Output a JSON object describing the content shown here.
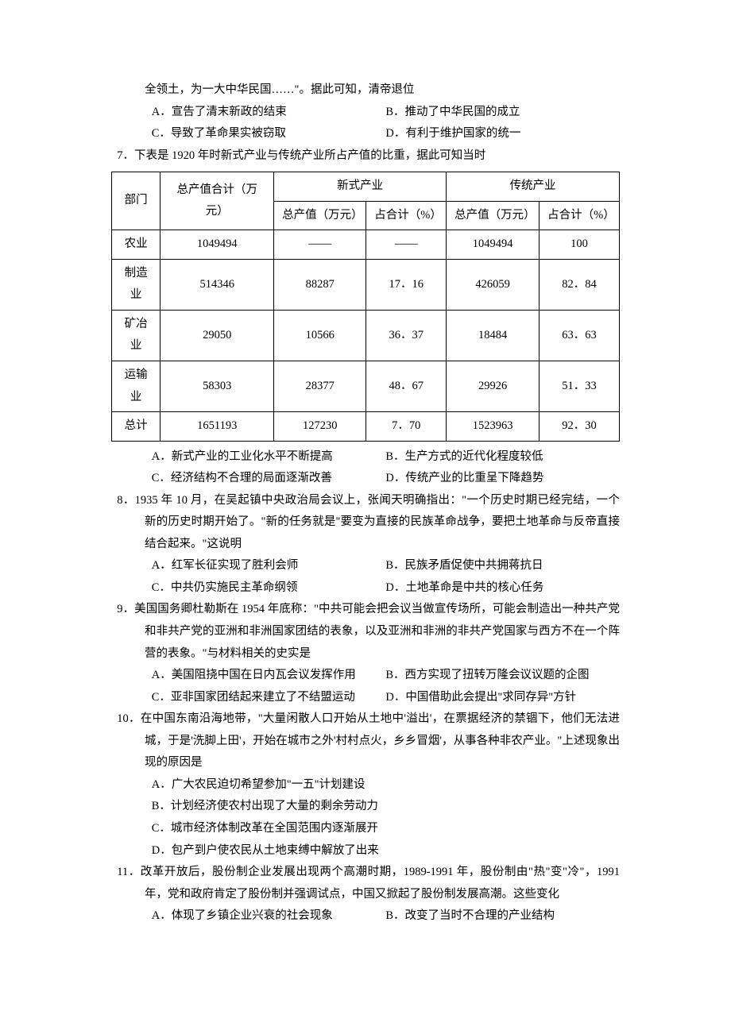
{
  "pre": {
    "line": "全领土，为一大中华民国……\"。据此可知，清帝退位",
    "optA": "A．宣告了清末新政的结束",
    "optB": "B．推动了中华民国的成立",
    "optC": "C．导致了革命果实被窃取",
    "optD": "D．有利于维护国家的统一"
  },
  "q7": {
    "stem": "7．下表是 1920 年时新式产业与传统产业所占产值的比重，据此可知当时",
    "table": {
      "h_dept": "部门",
      "h_total": "总产值合计（万元）",
      "h_new": "新式产业",
      "h_trad": "传统产业",
      "h_val": "总产值（万元）",
      "h_pct": "占合计（%）",
      "rows": [
        {
          "c0": "农业",
          "c1": "1049494",
          "c2": "——",
          "c3": "——",
          "c4": "1049494",
          "c5": "100"
        },
        {
          "c0": "制造业",
          "c1": "514346",
          "c2": "88287",
          "c3": "17．16",
          "c4": "426059",
          "c5": "82．84"
        },
        {
          "c0": "矿冶业",
          "c1": "29050",
          "c2": "10566",
          "c3": "36．37",
          "c4": "18484",
          "c5": "63．63"
        },
        {
          "c0": "运输业",
          "c1": "58303",
          "c2": "28377",
          "c3": "48．67",
          "c4": "29926",
          "c5": "51．33"
        },
        {
          "c0": "总计",
          "c1": "1651193",
          "c2": "127230",
          "c3": "7．70",
          "c4": "1523963",
          "c5": "92．30"
        }
      ]
    },
    "optA": "A．新式产业的工业化水平不断提高",
    "optB": "B．生产方式的近代化程度较低",
    "optC": "C．经济结构不合理的局面逐渐改善",
    "optD": "D．传统产业的比重呈下降趋势"
  },
  "q8": {
    "stem": "8．1935 年 10 月，在吴起镇中央政治局会议上，张闻天明确指出：\"一个历史时期已经完结，一个新的历史时期开始了。\"新的任务就是\"要变为直接的民族革命战争，要把土地革命与反帝直接结合起来。\"这说明",
    "optA": "A．红军长征实现了胜利会师",
    "optB": "B．民族矛盾促使中共拥蒋抗日",
    "optC": "C．中共仍实施民主革命纲领",
    "optD": "D．土地革命是中共的核心任务"
  },
  "q9": {
    "stem": "9．美国国务卿杜勒斯在 1954 年底称：\"中共可能会把会议当做宣传场所，可能会制造出一种共产党和非共产党的亚洲和非洲国家团结的表象，以及亚洲和非洲的非共产党国家与西方不在一个阵营的表象。\"与材料相关的史实是",
    "optA": "A．美国阻挠中国在日内瓦会议发挥作用",
    "optB": "B．西方实现了扭转万隆会议议题的企图",
    "optC": "C．亚非国家团结起来建立了不结盟运动",
    "optD": "D．中国借助此会提出\"求同存异\"方针"
  },
  "q10": {
    "stem": "10．在中国东南沿海地带，\"大量闲散人口开始从土地中'溢出'，在票据经济的禁锢下，他们无法进城，于是'洗脚上田'，开始在城市之外'村村点火，乡乡冒烟'，从事各种非农产业。\"上述现象出现的原因是",
    "optA": "A．广大农民迫切希望参加\"一五\"计划建设",
    "optB": "B．计划经济使农村出现了大量的剩余劳动力",
    "optC": "C．城市经济体制改革在全国范围内逐渐展开",
    "optD": "D．包产到户使农民从土地束缚中解放了出来"
  },
  "q11": {
    "stem": "11．改革开放后，股份制企业发展出现两个高潮时期，1989-1991 年，股份制由\"热\"变\"冷\"，1991 年，党和政府肯定了股份制并强调试点，中国又掀起了股份制发展高潮。这些变化",
    "optA": "A．体现了乡镇企业兴衰的社会现象",
    "optB": "B．改变了当时不合理的产业结构"
  }
}
